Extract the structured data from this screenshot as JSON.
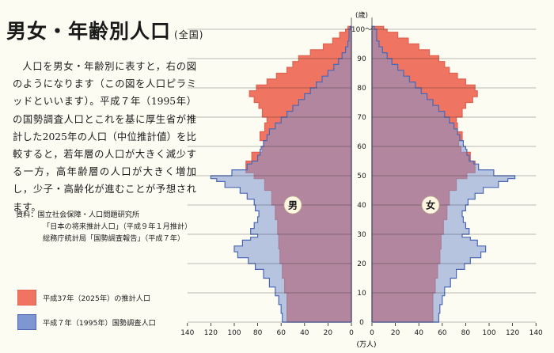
{
  "title": {
    "main": "男女・年齢別人口",
    "sub": "(全国)"
  },
  "description": "人口を男女・年齢別に表すと，右の図のようになります（この図を人口ピラミッドといいます）。平成７年（1995年）の国勢調査人口とこれを基に厚生省が推計した2025年の人口（中位推計値）を比較すると，若年層の人口が大きく減少する一方，高年齢層の人口が大きく増加し，少子・高齢化が進むことが予想されます。",
  "source": {
    "label": "資料：国立社会保障・人口問題研究所",
    "line2": "「日本の将来推計人口」（平成９年１月推計）",
    "line3": "総務庁統計局「国勢調査報告」（平成７年）"
  },
  "legend": {
    "projection_2025": "平成37年（2025年）の推計人口",
    "census_1995": "平成７年（1995年）国勢調査人口"
  },
  "colors": {
    "projection_2025": "#ef7461",
    "projection_edge": "#e06251",
    "census_1995": "#7e96d2",
    "census_edge": "#4a67b5",
    "grid": "#1a1a1a"
  },
  "chart_data": {
    "type": "area",
    "subtype": "population pyramid",
    "y_axis_label": "(歳)",
    "x_axis_label": "(万人)",
    "side_labels": {
      "left": "男",
      "right": "女"
    },
    "y_ticks": [
      "0",
      "10",
      "20",
      "30",
      "40",
      "50",
      "60",
      "70",
      "80",
      "90",
      "100〜"
    ],
    "x_ticks_left": [
      "140",
      "120",
      "100",
      "80",
      "60",
      "40",
      "20",
      "0"
    ],
    "x_ticks_right": [
      "0",
      "20",
      "40",
      "60",
      "80",
      "100",
      "120",
      "140"
    ],
    "ylim": [
      0,
      100
    ],
    "xlim": [
      0,
      140
    ],
    "series": [
      {
        "name": "平成37年（2025年）の推計人口",
        "male_points": [
          [
            0,
            55
          ],
          [
            5,
            55
          ],
          [
            10,
            57
          ],
          [
            15,
            59
          ],
          [
            20,
            61
          ],
          [
            25,
            62
          ],
          [
            30,
            63
          ],
          [
            35,
            65
          ],
          [
            40,
            68
          ],
          [
            45,
            74
          ],
          [
            49,
            83
          ],
          [
            51,
            90
          ],
          [
            55,
            85
          ],
          [
            58,
            76
          ],
          [
            60,
            75
          ],
          [
            62,
            78
          ],
          [
            65,
            74
          ],
          [
            68,
            72
          ],
          [
            70,
            76
          ],
          [
            73,
            79
          ],
          [
            75,
            83
          ],
          [
            77,
            87
          ],
          [
            79,
            81
          ],
          [
            81,
            72
          ],
          [
            83,
            64
          ],
          [
            85,
            55
          ],
          [
            87,
            50
          ],
          [
            89,
            45
          ],
          [
            91,
            35
          ],
          [
            93,
            24
          ],
          [
            95,
            16
          ],
          [
            97,
            10
          ],
          [
            99,
            5
          ],
          [
            100,
            3
          ]
        ],
        "female_points": [
          [
            0,
            52
          ],
          [
            5,
            52
          ],
          [
            10,
            54
          ],
          [
            15,
            56
          ],
          [
            20,
            58
          ],
          [
            25,
            59
          ],
          [
            30,
            61
          ],
          [
            35,
            64
          ],
          [
            40,
            66
          ],
          [
            45,
            72
          ],
          [
            49,
            81
          ],
          [
            51,
            88
          ],
          [
            55,
            84
          ],
          [
            58,
            76
          ],
          [
            60,
            74
          ],
          [
            62,
            77
          ],
          [
            65,
            73
          ],
          [
            68,
            72
          ],
          [
            70,
            77
          ],
          [
            73,
            80
          ],
          [
            75,
            86
          ],
          [
            77,
            90
          ],
          [
            79,
            88
          ],
          [
            81,
            80
          ],
          [
            83,
            73
          ],
          [
            85,
            66
          ],
          [
            87,
            62
          ],
          [
            89,
            57
          ],
          [
            91,
            49
          ],
          [
            93,
            40
          ],
          [
            95,
            31
          ],
          [
            97,
            22
          ],
          [
            99,
            13
          ],
          [
            100,
            10
          ]
        ]
      },
      {
        "name": "平成７年（1995年）国勢調査人口",
        "male_points": [
          [
            0,
            59
          ],
          [
            3,
            60
          ],
          [
            6,
            62
          ],
          [
            9,
            65
          ],
          [
            12,
            70
          ],
          [
            15,
            75
          ],
          [
            18,
            82
          ],
          [
            20,
            88
          ],
          [
            22,
            97
          ],
          [
            24,
            100
          ],
          [
            26,
            93
          ],
          [
            28,
            86
          ],
          [
            29,
            80
          ],
          [
            30,
            86
          ],
          [
            32,
            83
          ],
          [
            34,
            80
          ],
          [
            36,
            79
          ],
          [
            38,
            82
          ],
          [
            40,
            83
          ],
          [
            42,
            89
          ],
          [
            44,
            95
          ],
          [
            46,
            108
          ],
          [
            48,
            115
          ],
          [
            49,
            120
          ],
          [
            50,
            102
          ],
          [
            52,
            89
          ],
          [
            54,
            85
          ],
          [
            55,
            80
          ],
          [
            57,
            78
          ],
          [
            59,
            77
          ],
          [
            60,
            75
          ],
          [
            62,
            72
          ],
          [
            64,
            70
          ],
          [
            66,
            65
          ],
          [
            68,
            60
          ],
          [
            70,
            55
          ],
          [
            72,
            50
          ],
          [
            74,
            45
          ],
          [
            76,
            40
          ],
          [
            78,
            35
          ],
          [
            80,
            30
          ],
          [
            82,
            25
          ],
          [
            84,
            20
          ],
          [
            86,
            15
          ],
          [
            88,
            11
          ],
          [
            90,
            8
          ],
          [
            92,
            5
          ],
          [
            94,
            3
          ],
          [
            96,
            2
          ],
          [
            100,
            1
          ]
        ],
        "female_points": [
          [
            0,
            57
          ],
          [
            3,
            58
          ],
          [
            6,
            60
          ],
          [
            9,
            62
          ],
          [
            12,
            67
          ],
          [
            15,
            72
          ],
          [
            18,
            79
          ],
          [
            20,
            84
          ],
          [
            22,
            93
          ],
          [
            24,
            97
          ],
          [
            26,
            90
          ],
          [
            28,
            84
          ],
          [
            29,
            77
          ],
          [
            30,
            83
          ],
          [
            32,
            80
          ],
          [
            34,
            78
          ],
          [
            36,
            77
          ],
          [
            38,
            80
          ],
          [
            40,
            82
          ],
          [
            42,
            88
          ],
          [
            44,
            95
          ],
          [
            46,
            108
          ],
          [
            48,
            116
          ],
          [
            49,
            122
          ],
          [
            50,
            104
          ],
          [
            52,
            91
          ],
          [
            54,
            87
          ],
          [
            55,
            83
          ],
          [
            57,
            81
          ],
          [
            59,
            80
          ],
          [
            60,
            78
          ],
          [
            62,
            75
          ],
          [
            64,
            73
          ],
          [
            66,
            70
          ],
          [
            68,
            66
          ],
          [
            70,
            62
          ],
          [
            72,
            57
          ],
          [
            74,
            52
          ],
          [
            76,
            47
          ],
          [
            78,
            42
          ],
          [
            80,
            37
          ],
          [
            82,
            32
          ],
          [
            84,
            27
          ],
          [
            86,
            22
          ],
          [
            88,
            17
          ],
          [
            90,
            13
          ],
          [
            92,
            9
          ],
          [
            94,
            6
          ],
          [
            96,
            4
          ],
          [
            100,
            2
          ]
        ]
      }
    ]
  }
}
